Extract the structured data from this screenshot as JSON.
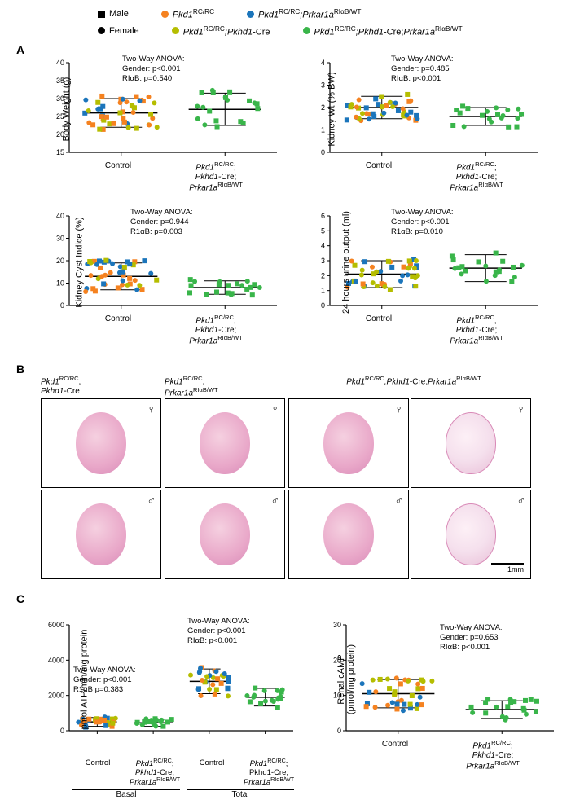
{
  "legend": {
    "shape_male": "Male",
    "shape_female": "Female",
    "grp1": "Pkd1",
    "grp1_sup": "RC/RC",
    "grp2_a": "Pkd1",
    "grp2_a_sup": "RC/RC",
    "grp2_b": ";Pkhd1",
    "grp2_c": "-Cre",
    "grp3_a": "Pkd1",
    "grp3_a_sup": "RC/RC",
    "grp3_b": ";Prkar1a",
    "grp3_b_sup": "RIαB/WT",
    "grp4_a": "Pkd1",
    "grp4_a_sup": "RC/RC",
    "grp4_b": ";Pkhd1",
    "grp4_c": "-Cre;",
    "grp4_d": "Prkar1a",
    "grp4_d_sup": "RIαB/WT",
    "colors": {
      "orange": "#f58220",
      "olive": "#b5bd00",
      "blue": "#1b75bb",
      "green": "#39b54a"
    }
  },
  "panelA": {
    "label": "A",
    "chart1": {
      "ylabel": "Body Weight (g)",
      "ylim": [
        15,
        40
      ],
      "yticks": [
        15,
        20,
        25,
        30,
        35,
        40
      ],
      "anova_title": "Two-Way ANOVA:",
      "anova_l1": "Gender:  p<0.001",
      "anova_l2": "RIαB:     p=0.540",
      "xlab1": "Control",
      "xlab2_l1": "Pkd1",
      "xlab2_l1sup": "RC/RC",
      "xlab2_l1b": ";",
      "xlab2_l2": "Pkhd1",
      "xlab2_l2b": "-Cre;",
      "xlab2_l3": "Prkar1a",
      "xlab2_l3sup": "RIαB/WT"
    },
    "chart2": {
      "ylabel": "Kidney Wt (% BW)",
      "ylim": [
        0,
        4
      ],
      "yticks": [
        0,
        1,
        2,
        3,
        4
      ],
      "anova_title": "Two-Way ANOVA:",
      "anova_l1": "Gender:  p=0.485",
      "anova_l2": "RIαB:     p<0.001"
    },
    "chart3": {
      "ylabel": "Kidney Cyst Indice (%)",
      "ylim": [
        0,
        40
      ],
      "yticks": [
        0,
        10,
        20,
        30,
        40
      ],
      "anova_title": "Two-Way ANOVA:",
      "anova_l1": "Gender:  p=0.944",
      "anova_l2": "R1αB:    p=0.003"
    },
    "chart4": {
      "ylabel": "24 hours urine output (ml)",
      "ylim": [
        0,
        6
      ],
      "yticks": [
        0,
        1,
        2,
        3,
        4,
        5,
        6
      ],
      "anova_title": "Two-Way ANOVA:",
      "anova_l1": "Gender:  p<0.001",
      "anova_l2": "R1αB:    p=0.010"
    }
  },
  "panelB": {
    "label": "B",
    "hdr1_a": "Pkd1",
    "hdr1_a_sup": "RC/RC",
    "hdr1_b": ";",
    "hdr1_c": "Pkhd1",
    "hdr1_d": "-Cre",
    "hdr2_a": "Pkd1",
    "hdr2_a_sup": "RC/RC",
    "hdr2_b": ";",
    "hdr2_c": "Prkar1a",
    "hdr2_c_sup": "RIαB/WT",
    "hdr3_a": "Pkd1",
    "hdr3_a_sup": "RC/RC",
    "hdr3_b": ";Pkhd1",
    "hdr3_c": "-Cre;",
    "hdr3_d": "Prkar1a",
    "hdr3_d_sup": "RIαB/WT",
    "scalebar": "1mm"
  },
  "panelC": {
    "label": "C",
    "chart1": {
      "ylabel": "pmol ATP/min/mg protein",
      "ylim": [
        0,
        6000
      ],
      "yticks": [
        0,
        2000,
        4000,
        6000
      ],
      "anova1_title": "Two-Way ANOVA:",
      "anova1_l1": "Gender: p<0.001",
      "anova1_l2": "R1αB p=0.383",
      "anova2_title": "Two-Way ANOVA:",
      "anova2_l1": "Gender:  p<0.001",
      "anova2_l2": "RIαB:     p<0.001",
      "basal": "Basal",
      "total": "Total"
    },
    "chart2": {
      "ylabel": "Renal cAMP\n(pmol/mg protein)",
      "ylabel_l1": "Renal cAMP",
      "ylabel_l2": "(pmol/mg protein)",
      "ylim": [
        0,
        30
      ],
      "yticks": [
        0,
        10,
        20,
        30
      ],
      "anova_title": "Two-Way ANOVA:",
      "anova_l1": "Gender:  p=0.653",
      "anova_l2": "RIαB:     p<0.001"
    }
  },
  "style": {
    "axis_color": "#000000",
    "marker_size": 6,
    "marker_stroke": 0,
    "errorbar_color": "#000000"
  },
  "scatter_seed": {
    "A1_control": [
      [
        0.05,
        26
      ],
      [
        0.12,
        28
      ],
      [
        0.2,
        24
      ],
      [
        0.28,
        30
      ],
      [
        0.35,
        22
      ],
      [
        0.42,
        27
      ],
      [
        0.5,
        25
      ],
      [
        0.55,
        29
      ],
      [
        0.15,
        33
      ],
      [
        0.3,
        19
      ],
      [
        0.45,
        31
      ],
      [
        0.08,
        23
      ],
      [
        0.38,
        20
      ],
      [
        0.52,
        34
      ],
      [
        0.22,
        26
      ],
      [
        0.4,
        28
      ],
      [
        0.1,
        21
      ],
      [
        0.48,
        24
      ],
      [
        0.25,
        35
      ],
      [
        0.33,
        27
      ],
      [
        0.18,
        29
      ],
      [
        0.44,
        22
      ],
      [
        0.06,
        30
      ],
      [
        0.5,
        19
      ],
      [
        0.29,
        25
      ],
      [
        0.41,
        32
      ],
      [
        0.14,
        24
      ],
      [
        0.36,
        18
      ],
      [
        0.53,
        26
      ],
      [
        0.21,
        31
      ]
    ],
    "A1_treat": [
      [
        0.05,
        27
      ],
      [
        0.15,
        30
      ],
      [
        0.25,
        24
      ],
      [
        0.35,
        33
      ],
      [
        0.45,
        22
      ],
      [
        0.1,
        28
      ],
      [
        0.3,
        19
      ],
      [
        0.4,
        31
      ],
      [
        0.2,
        26
      ],
      [
        0.5,
        25
      ],
      [
        0.08,
        34
      ],
      [
        0.38,
        29
      ],
      [
        0.28,
        17
      ],
      [
        0.18,
        32
      ],
      [
        0.42,
        23
      ]
    ]
  }
}
